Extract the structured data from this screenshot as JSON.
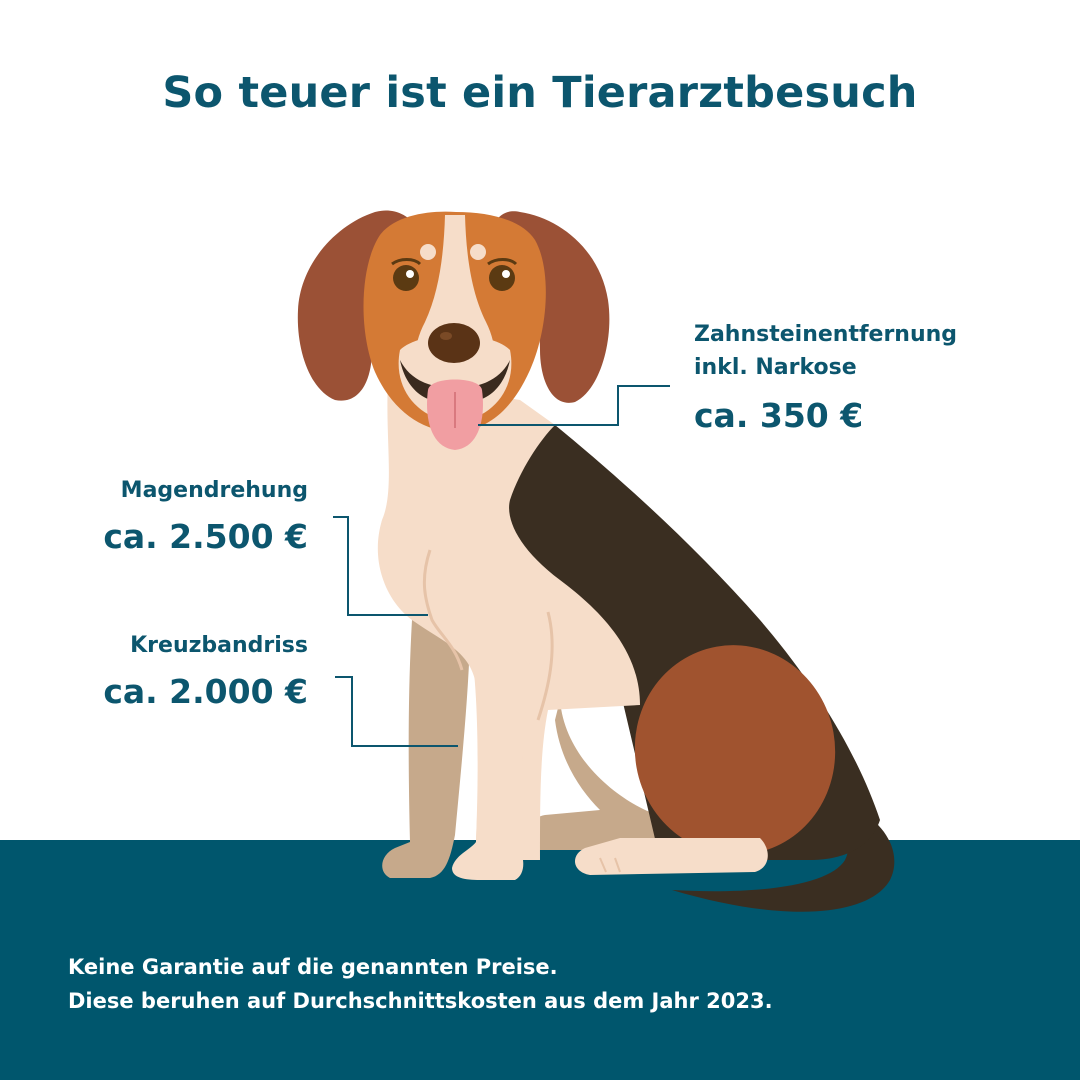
{
  "title": "So teuer ist ein Tierarztbesuch",
  "costs": [
    {
      "name_lines": [
        "Zahnsteinentfernung",
        "inkl. Narkose"
      ],
      "price": "ca. 350 €"
    },
    {
      "name_lines": [
        "Magendrehung"
      ],
      "price": "ca. 2.500 €"
    },
    {
      "name_lines": [
        "Kreuzbandriss"
      ],
      "price": "ca. 2.000 €"
    }
  ],
  "footnote": [
    "Keine Garantie auf die genannten Preise.",
    "Diese beruhen auf Durchschnittskosten aus dem Jahr 2023."
  ],
  "colors": {
    "brand": "#0c566e",
    "ground": "#00566d",
    "ear": "#9b5136",
    "head": "#d47a35",
    "cream": "#f6ddc9",
    "dark_coat": "#3a2e21",
    "thigh": "#a0532f",
    "tan_leg": "#c6a98b",
    "tongue": "#f19ea2"
  }
}
